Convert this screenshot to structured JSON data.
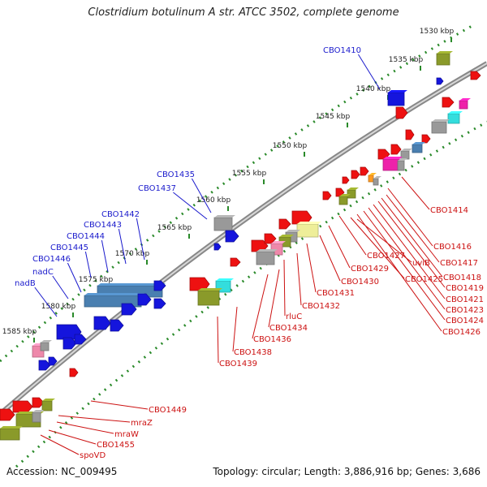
{
  "title": "Clostridium botulinum A str. ATCC 3502, complete genome",
  "footer": {
    "accession": "Accession: NC_009495",
    "summary": "Topology: circular; Length: 3,886,916 bp; Genes: 3,686"
  },
  "scale_ticks": [
    "1530 kbp",
    "1535 kbp",
    "1540 kbp",
    "1545 kbp",
    "1550 kbp",
    "1555 kbp",
    "1560 kbp",
    "1565 kbp",
    "1570 kbp",
    "1575 kbp",
    "1580 kbp",
    "1585 kbp"
  ],
  "gene_labels_left": [
    "CBO1410",
    "CBO1435",
    "CBO1437",
    "CBO1442",
    "CBO1443",
    "CBO1444",
    "CBO1445",
    "CBO1446",
    "nadC",
    "nadB"
  ],
  "gene_labels_right": [
    "CBO1414",
    "CBO1416",
    "CBO1417",
    "CBO1418",
    "CBO1419",
    "CBO1421",
    "CBO1423",
    "CBO1424",
    "CBO1426",
    "CBO1425",
    "uviB",
    "CBO1427",
    "CBO1429",
    "CBO1430",
    "CBO1431",
    "CBO1432",
    "rluC",
    "CBO1434",
    "CBO1436",
    "CBO1438",
    "CBO1439",
    "CBO1449",
    "mraZ",
    "mraW",
    "CBO1455",
    "spoVD"
  ],
  "colors": {
    "backbone": "#888888",
    "scale_dots": "#2a8a2a",
    "label_left": "#1a1acc",
    "label_right": "#cc1111",
    "gene_red": "#ee1111",
    "gene_blue": "#1515dd",
    "gene_olive": "#8a9a2a",
    "gene_steelblue": "#4a7fb0",
    "gene_cyan": "#33dddd",
    "gene_grey": "#999999",
    "gene_pink": "#ee88aa",
    "gene_yellow": "#eeee99",
    "gene_orange": "#ff9922",
    "gene_magenta": "#ee22aa"
  }
}
